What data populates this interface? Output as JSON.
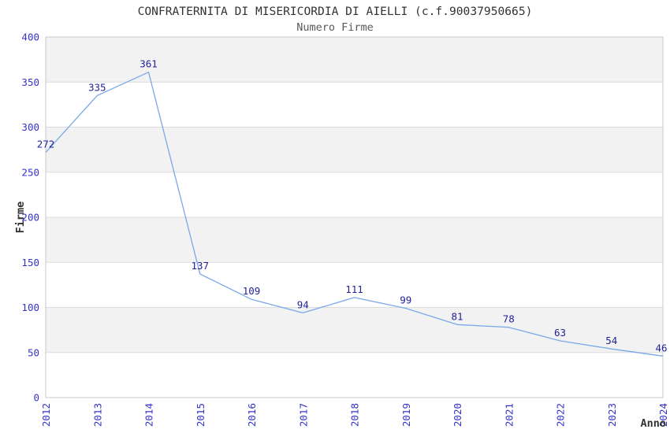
{
  "chart_data": {
    "type": "line",
    "title": "CONFRATERNITA DI MISERICORDIA DI AIELLI (c.f.90037950665)",
    "subtitle": "Numero Firme",
    "xlabel": "Anno",
    "ylabel": "Firme",
    "categories": [
      "2012",
      "2013",
      "2014",
      "2015",
      "2016",
      "2017",
      "2018",
      "2019",
      "2020",
      "2021",
      "2022",
      "2023",
      "2024"
    ],
    "series": [
      {
        "name": "Numero Firme",
        "values": [
          272,
          335,
          361,
          137,
          109,
          94,
          111,
          99,
          81,
          78,
          63,
          54,
          46
        ]
      }
    ],
    "ylim": [
      0,
      400
    ],
    "yticks": [
      0,
      50,
      100,
      150,
      200,
      250,
      300,
      350,
      400
    ],
    "grid": true,
    "legend_position": "none",
    "band_fill": "alternating-horizontal",
    "x_tick_rotation": -90,
    "data_labels_shown": true
  },
  "colors": {
    "line": "#79a8e8",
    "data_label": "#222299",
    "tick_label": "#3333cc",
    "band": "#f2f2f2",
    "grid": "#dcdcdc",
    "frame": "#c9c9c9",
    "title": "#333333",
    "subtitle": "#595959",
    "axis_title": "#333333",
    "background": "#ffffff"
  }
}
